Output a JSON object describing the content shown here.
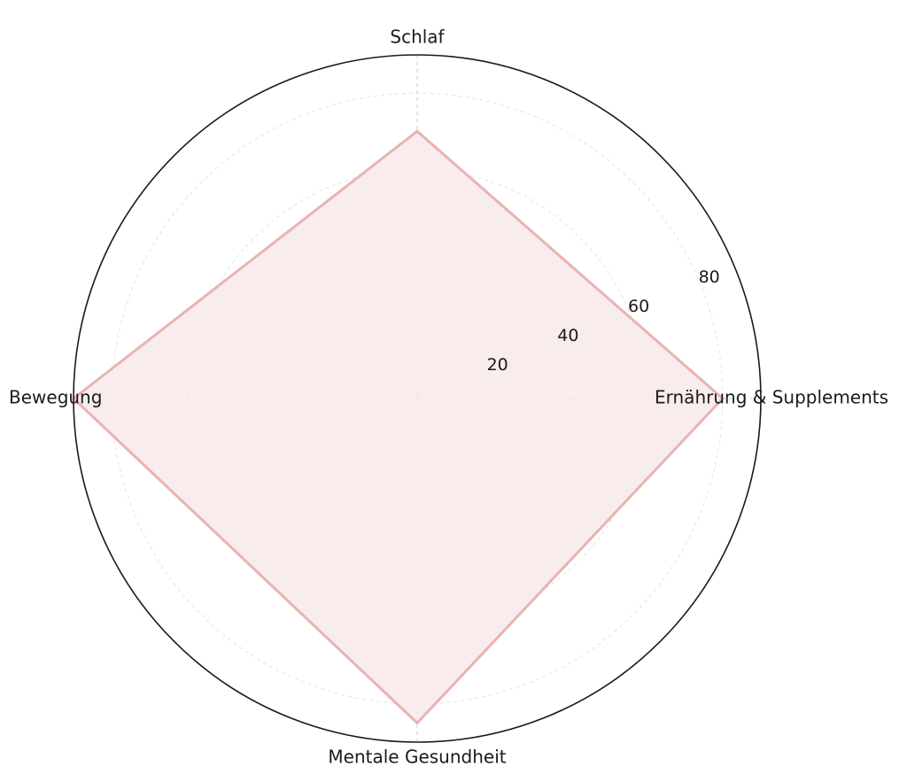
{
  "chart_data": {
    "type": "radar",
    "categories": [
      "Ernährung & Supplements",
      "Schlaf",
      "Bewegung",
      "Mentale Gesundheit"
    ],
    "series": [
      {
        "values": [
          80,
          70,
          90,
          85
        ]
      }
    ],
    "rlim": [
      0,
      90
    ],
    "radial_ticks": [
      20,
      40,
      60,
      80
    ],
    "radial_tick_labels": [
      "20",
      "40",
      "60",
      "80"
    ],
    "grid": true,
    "colors": {
      "line": "#e8b4b0",
      "fill": "#f7e9ea",
      "outer_circle": "#1a1a1a",
      "grid": "#cccccc"
    }
  }
}
